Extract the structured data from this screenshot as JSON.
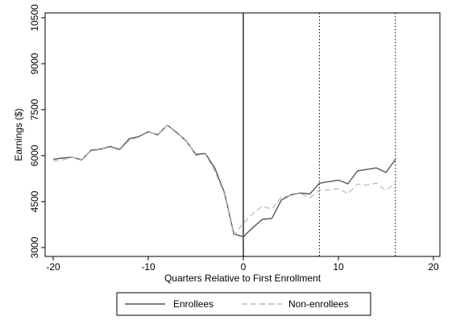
{
  "chart_data": {
    "type": "line",
    "title": "",
    "xlabel": "Quarters Relative to First Enrollment",
    "ylabel": "Earnings ($)",
    "xlim": [
      -20,
      20
    ],
    "ylim": [
      3000,
      10500
    ],
    "xticks": [
      -20,
      -10,
      0,
      10,
      20
    ],
    "yticks": [
      3000,
      4500,
      6000,
      7500,
      9000,
      10500
    ],
    "grid": false,
    "legend_position": "bottom",
    "reference_lines": [
      {
        "x": 0,
        "style": "solid"
      },
      {
        "x": 8,
        "style": "dotted"
      },
      {
        "x": 16,
        "style": "dotted"
      }
    ],
    "x": [
      -20,
      -19,
      -18,
      -17,
      -16,
      -15,
      -14,
      -13,
      -12,
      -11,
      -10,
      -9,
      -8,
      -7,
      -6,
      -5,
      -4,
      -3,
      -2,
      -1,
      0,
      1,
      2,
      3,
      4,
      5,
      6,
      7,
      8,
      9,
      10,
      11,
      12,
      13,
      14,
      15,
      16
    ],
    "series": [
      {
        "name": "Enrollees",
        "style": "solid",
        "color": "#555555",
        "values": [
          5880,
          5920,
          5950,
          5860,
          6180,
          6210,
          6300,
          6200,
          6550,
          6620,
          6780,
          6680,
          7000,
          6750,
          6480,
          6040,
          6070,
          5600,
          4800,
          3450,
          3350,
          3650,
          3920,
          3950,
          4550,
          4720,
          4780,
          4750,
          5100,
          5150,
          5200,
          5080,
          5500,
          5550,
          5600,
          5450,
          5880
        ]
      },
      {
        "name": "Non-enrollees",
        "style": "dashed",
        "color": "#bbbbbb",
        "values": [
          5820,
          5860,
          5940,
          5880,
          6150,
          6200,
          6280,
          6180,
          6500,
          6600,
          6760,
          6700,
          7000,
          6720,
          6500,
          6000,
          6050,
          5500,
          4750,
          3400,
          3800,
          4100,
          4350,
          4250,
          4650,
          4700,
          4770,
          4620,
          4880,
          4880,
          4920,
          4760,
          5070,
          5040,
          5100,
          4860,
          5100
        ]
      }
    ]
  }
}
